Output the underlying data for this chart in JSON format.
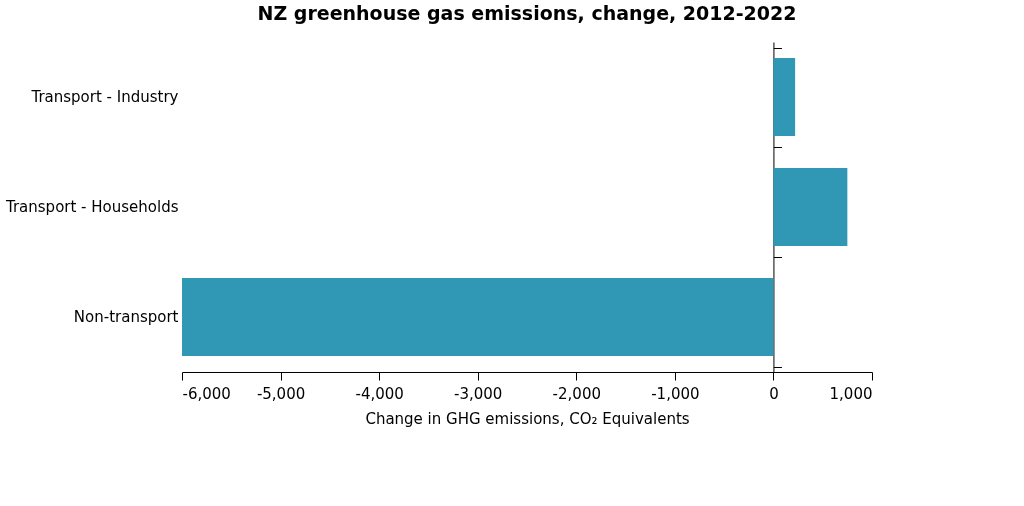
{
  "chart_data": {
    "type": "bar",
    "orientation": "horizontal",
    "title": "NZ greenhouse gas emissions, change, 2012-2022",
    "xlabel": "Change in GHG emissions, CO₂ Equivalents",
    "categories": [
      "Transport - Industry",
      "Transport - Households",
      "Non-transport"
    ],
    "values": [
      220,
      750,
      -6000
    ],
    "color": "#3097b4",
    "xlim": [
      -6000,
      1000
    ],
    "xticks": [
      {
        "value": -6000,
        "label": "-6,000"
      },
      {
        "value": -5000,
        "label": "-5,000"
      },
      {
        "value": -4000,
        "label": "-4,000"
      },
      {
        "value": -3000,
        "label": "-3,000"
      },
      {
        "value": -2000,
        "label": "-2,000"
      },
      {
        "value": -1000,
        "label": "-1,000"
      },
      0,
      {
        "value": 1000,
        "label": "1,000"
      }
    ],
    "data_labels": false
  }
}
